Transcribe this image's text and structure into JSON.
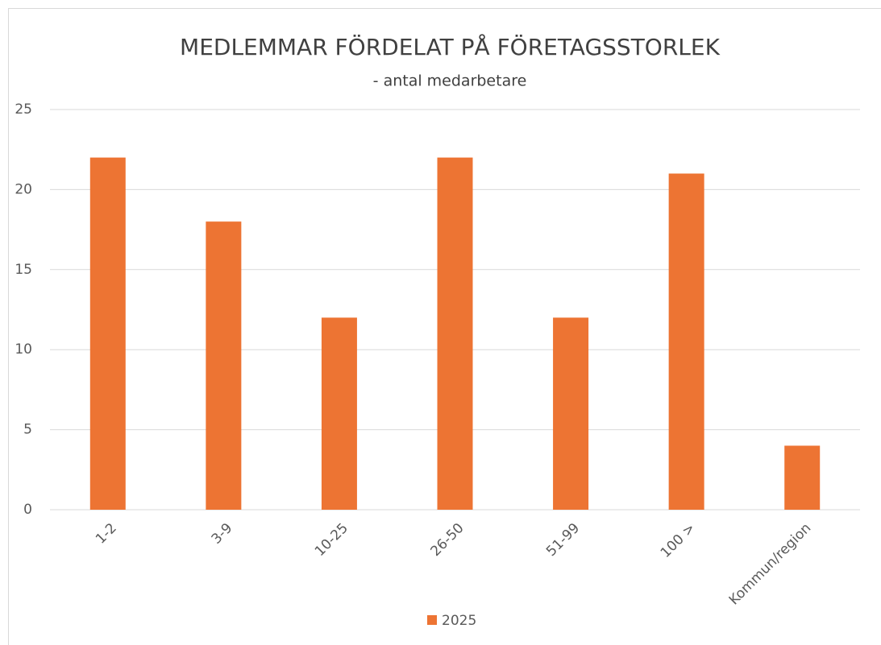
{
  "chart_data": {
    "type": "bar",
    "title": "MEDLEMMAR FÖRDELAT PÅ FÖRETAGSSTORLEK",
    "subtitle": "- antal medarbetare",
    "categories": [
      "1-2",
      "3-9",
      "10-25",
      "26-50",
      "51-99",
      "100 >",
      "Kommun/region"
    ],
    "series": [
      {
        "name": "2025",
        "color": "#ed7433",
        "values": [
          22,
          18,
          12,
          22,
          12,
          21,
          4
        ]
      }
    ],
    "ylim": [
      0,
      25
    ],
    "yticks": [
      0,
      5,
      10,
      15,
      20,
      25
    ],
    "grid": true,
    "legend": "bottom"
  }
}
